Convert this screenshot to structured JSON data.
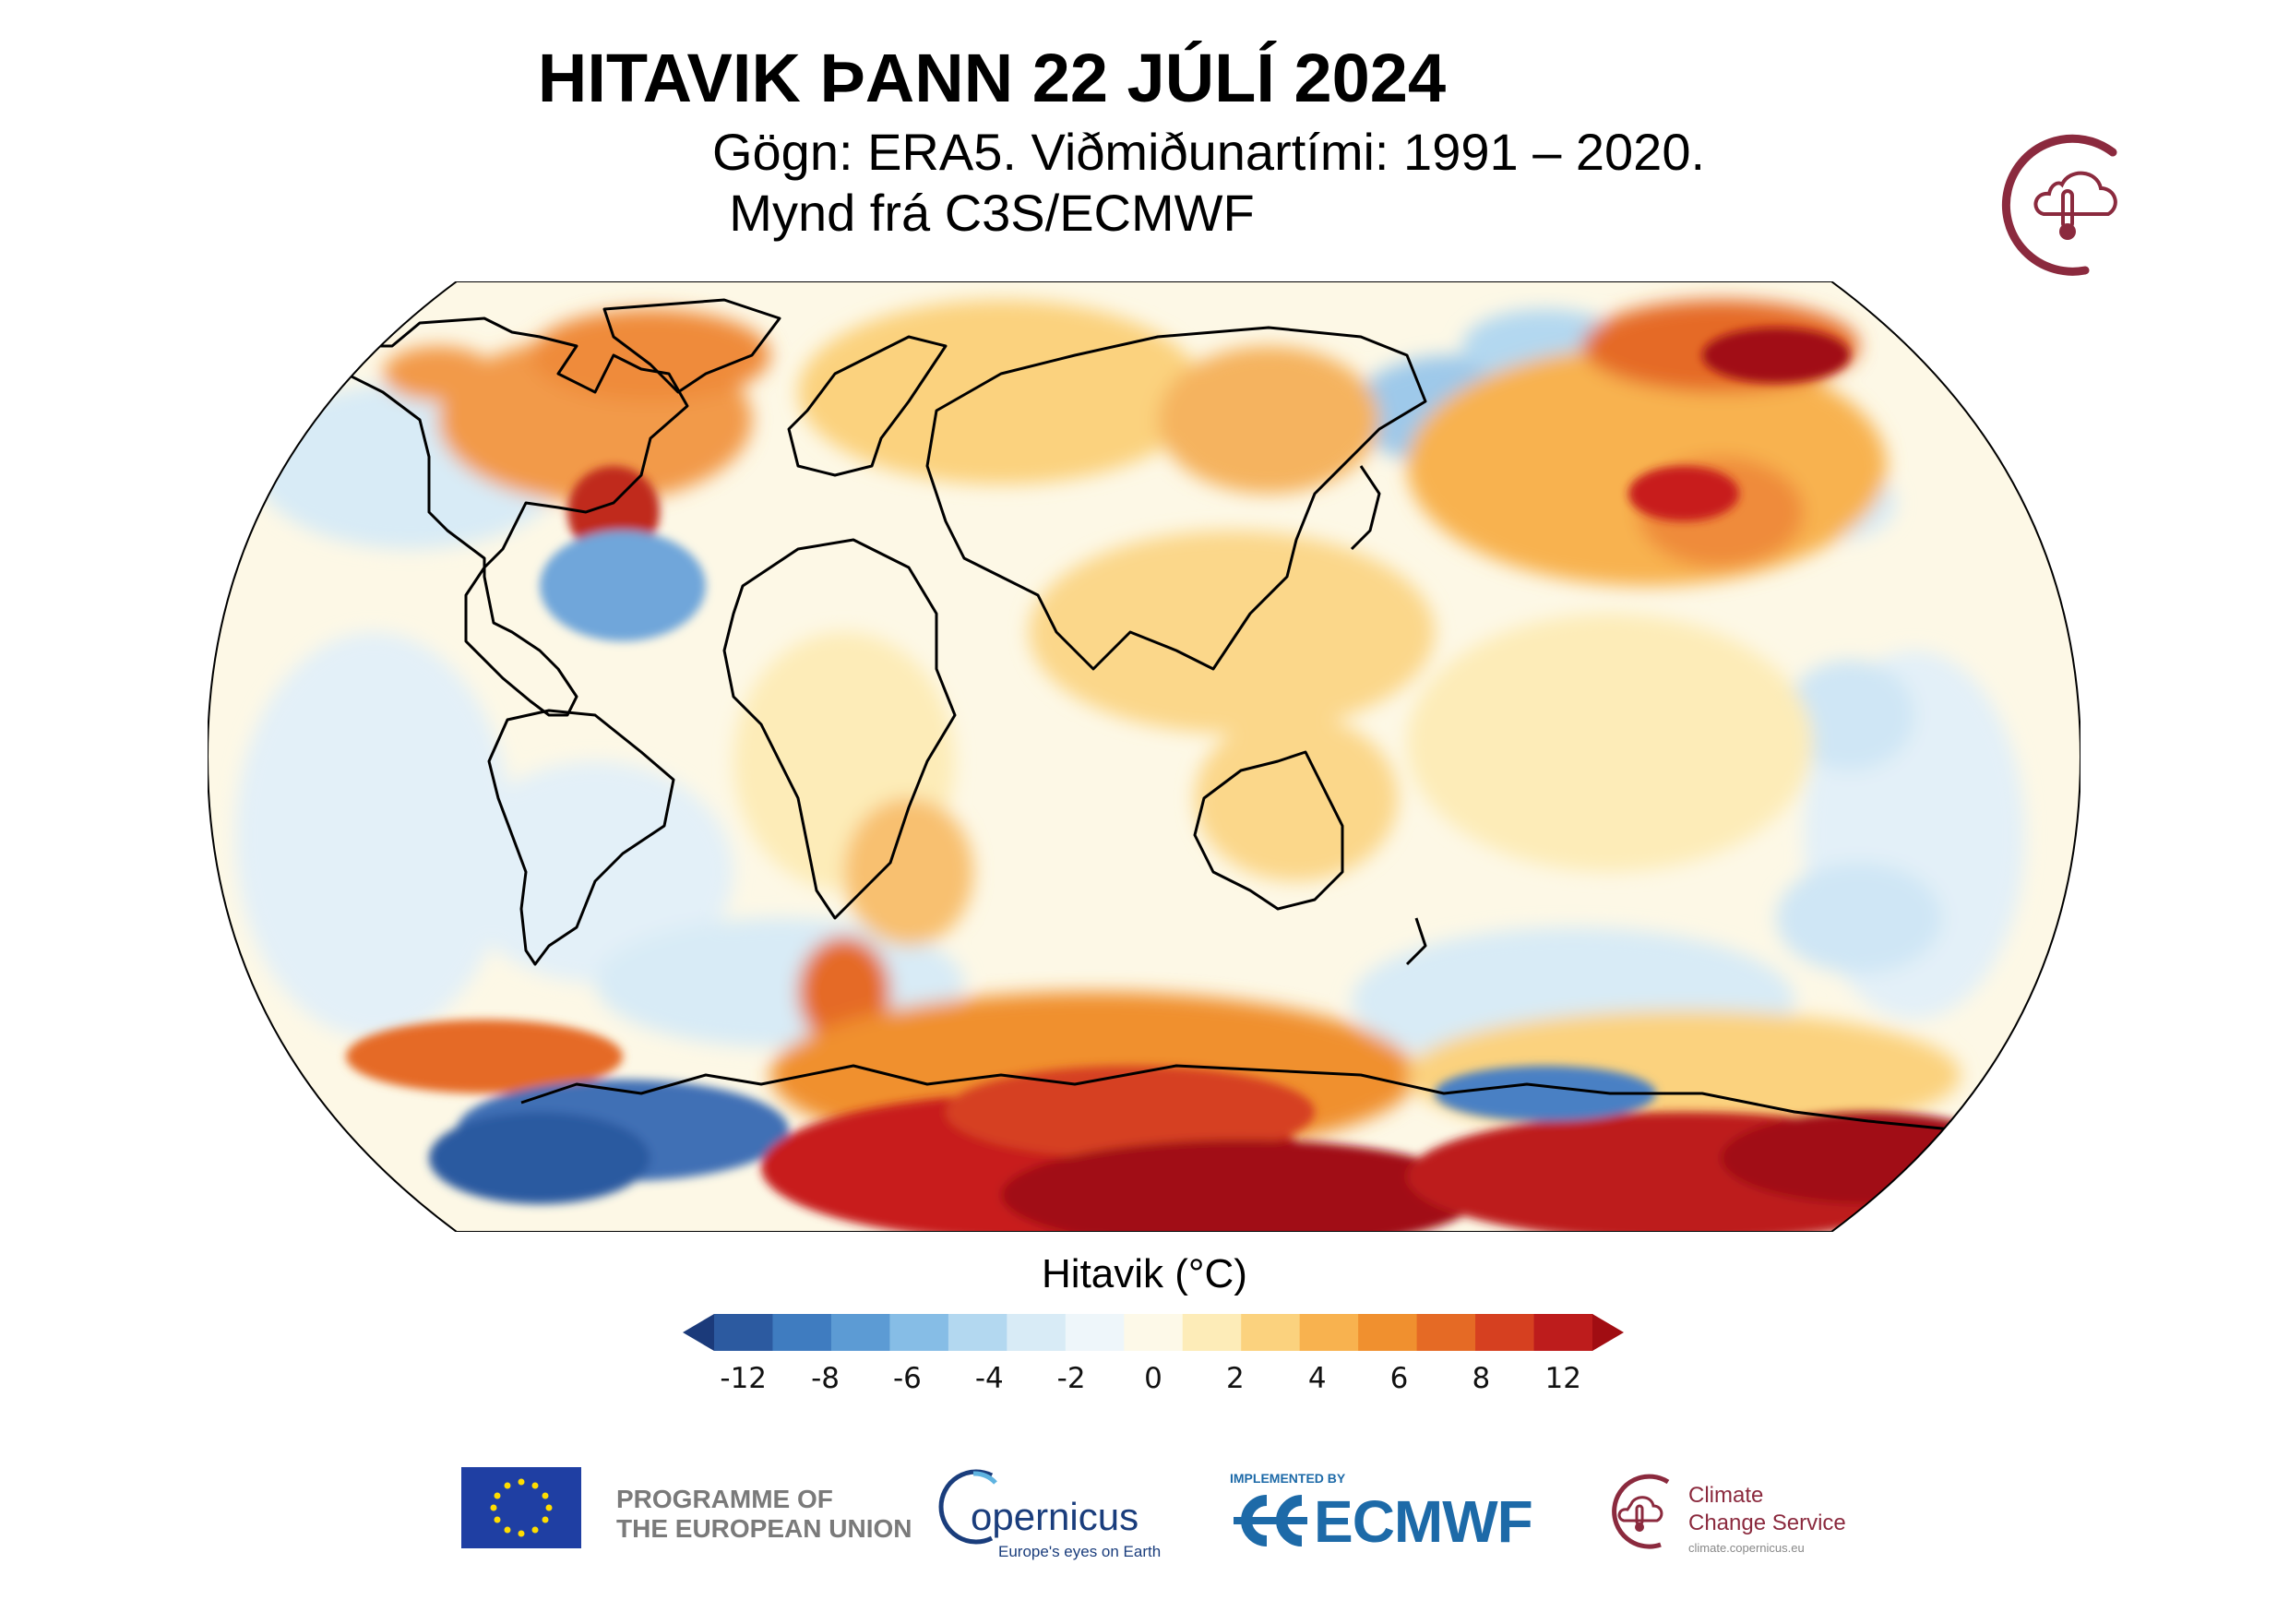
{
  "header": {
    "title": "HITAVIK ÞANN 22 JÚLÍ 2024",
    "subtitle_line1": "Gögn: ERA5. Viðmiðunartími: 1991 – 2020.",
    "subtitle_line2": "Mynd frá C3S/ECMWF"
  },
  "map": {
    "projection": "robinson",
    "variable": "surface air temperature anomaly",
    "date": "22 JÚLÍ 2024",
    "colors": {
      "strong_cold": "#1f3f86",
      "cold": "#5a9bd5",
      "cool": "#cfe6f5",
      "neutral": "#fdf8e6",
      "warm": "#fbd78a",
      "hot": "#ef8b3a",
      "very_hot": "#c81b1b",
      "extreme_hot": "#8b0a0a",
      "coastline": "#000000"
    }
  },
  "colorbar": {
    "title": "Hitavik (°C)",
    "ticks": [
      "-12",
      "-8",
      "-6",
      "-4",
      "-2",
      "0",
      "2",
      "4",
      "6",
      "8",
      "12"
    ],
    "colors": [
      "#1b3a7a",
      "#2c5aa0",
      "#3f7cc0",
      "#5c9bd4",
      "#86bde6",
      "#b3d8f0",
      "#d8ebf6",
      "#eef6fa",
      "#fdf9e8",
      "#fdecb8",
      "#fbd27e",
      "#f8b24f",
      "#f0902f",
      "#e56a25",
      "#d64020",
      "#bd1c1c",
      "#a10d12"
    ],
    "extend": "both"
  },
  "logos": {
    "eu_line1": "PROGRAMME OF",
    "eu_line2": "THE EUROPEAN UNION",
    "copernicus_name": "opernicus",
    "copernicus_tagline": "Europe's eyes on Earth",
    "ecmwf_implemented": "IMPLEMENTED BY",
    "ecmwf_name": "ECMWF",
    "c3s_line1": "Climate",
    "c3s_line2": "Change Service",
    "c3s_url": "climate.copernicus.eu"
  }
}
